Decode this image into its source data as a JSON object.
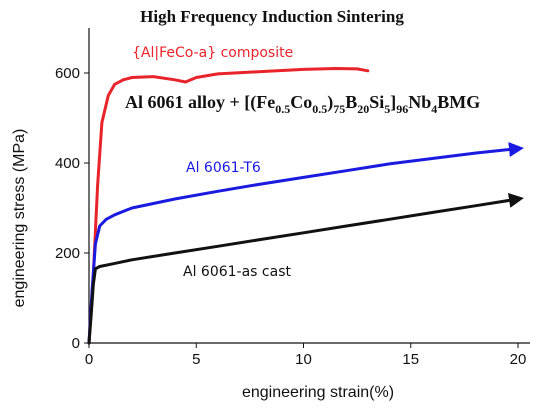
{
  "chart_data": {
    "type": "line",
    "title": "High Frequency Induction Sintering",
    "xlabel": "engineering strain(%)",
    "ylabel": "engineering stress (MPa)",
    "xlim": [
      0,
      20
    ],
    "ylim": [
      0,
      700
    ],
    "xticks": [
      "0",
      "5",
      "10",
      "15",
      "20"
    ],
    "yticks": [
      "0",
      "200",
      "400",
      "600"
    ],
    "grid": false,
    "annotation": {
      "prefix": "Al 6061 alloy + [(Fe",
      "s1": "0.5",
      "t2": "Co",
      "s2": "0.5",
      "t3": ")",
      "s3": "75",
      "t4": "B",
      "s4": "20",
      "t5": "Si",
      "s5": "5",
      "t6": "]",
      "s6": "96",
      "t7": "Nb",
      "s7": "4",
      "t8": "BMG"
    },
    "series": [
      {
        "name": "{Al|FeCo-a} composite",
        "color": "#e8232a",
        "arrow": false,
        "x": [
          0,
          0.2,
          0.4,
          0.6,
          0.9,
          1.2,
          1.6,
          2.0,
          3.0,
          4.0,
          4.5,
          5.0,
          6.0,
          8.0,
          10.0,
          11.5,
          12.5,
          13.0
        ],
        "y": [
          0,
          150,
          350,
          490,
          550,
          575,
          585,
          590,
          592,
          585,
          580,
          590,
          598,
          603,
          608,
          610,
          609,
          605
        ]
      },
      {
        "name": "Al 6061-T6",
        "color": "#1a1ae0",
        "arrow": true,
        "x": [
          0,
          0.15,
          0.3,
          0.5,
          0.8,
          1.2,
          2.0,
          4.0,
          6.0,
          8.0,
          10.0,
          12.0,
          14.0,
          16.0,
          18.0,
          20.0
        ],
        "y": [
          0,
          120,
          220,
          260,
          275,
          285,
          300,
          320,
          337,
          353,
          368,
          383,
          398,
          410,
          422,
          432
        ]
      },
      {
        "name": "Al 6061-as cast",
        "color": "#111111",
        "arrow": true,
        "x": [
          0,
          0.1,
          0.2,
          0.3,
          0.5,
          1.0,
          2.0,
          4.0,
          6.0,
          8.0,
          10.0,
          12.0,
          14.0,
          16.0,
          18.0,
          20.0
        ],
        "y": [
          0,
          60,
          130,
          165,
          170,
          175,
          185,
          200,
          215,
          230,
          245,
          260,
          275,
          290,
          305,
          320
        ]
      }
    ]
  }
}
